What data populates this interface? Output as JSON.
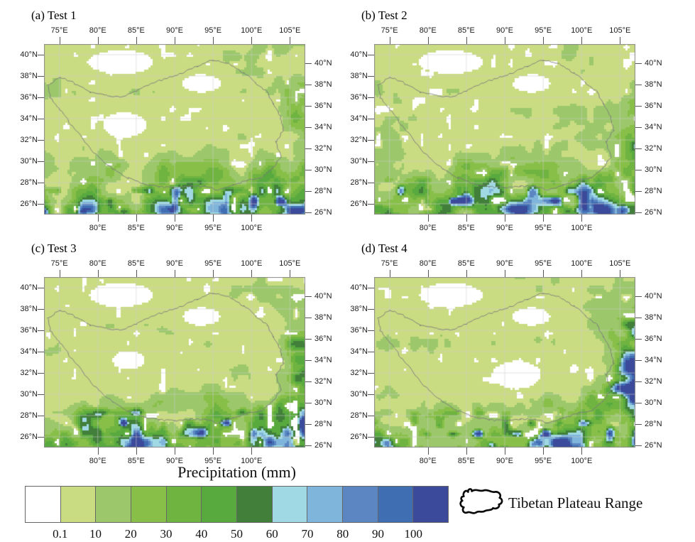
{
  "figure": {
    "panels": [
      {
        "key": "a",
        "title": "(a) Test 1"
      },
      {
        "key": "b",
        "title": "(b) Test 2"
      },
      {
        "key": "c",
        "title": "(c) Test 3"
      },
      {
        "key": "d",
        "title": "(d) Test 4"
      }
    ],
    "axes": {
      "top_ticks": [
        "75°E",
        "80°E",
        "85°E",
        "90°E",
        "95°E",
        "100°E",
        "105°E"
      ],
      "bottom_ticks": [
        "80°E",
        "85°E",
        "90°E",
        "95°E",
        "100°E"
      ],
      "left_ticks": [
        "40°N",
        "38°N",
        "36°N",
        "34°N",
        "32°N",
        "30°N",
        "28°N",
        "26°N"
      ],
      "right_ticks": [
        "40°N",
        "38°N",
        "36°N",
        "34°N",
        "32°N",
        "30°N",
        "28°N",
        "26°N"
      ]
    },
    "colorbar": {
      "title": "Precipitation (mm)",
      "tick_labels": [
        "0.1",
        "10",
        "20",
        "30",
        "40",
        "50",
        "60",
        "70",
        "80",
        "90",
        "100"
      ],
      "colors": [
        "#ffffff",
        "#c9dc82",
        "#9cc86b",
        "#88bf48",
        "#6fb341",
        "#58aa3f",
        "#417f3a",
        "#a0d9e4",
        "#7fb5da",
        "#5b86c2",
        "#3f6eb3",
        "#3c4a9b"
      ]
    },
    "legend": {
      "label": "Tibetan Plateau Range",
      "icon": "tibetan-plateau-outline-icon"
    }
  },
  "chart_data": {
    "type": "heatmap",
    "subtype": "filled_contour_precipitation_maps",
    "layout": "2x2_panel_grid",
    "panels": [
      "(a) Test 1",
      "(b) Test 2",
      "(c) Test 3",
      "(d) Test 4"
    ],
    "variable": "Precipitation (mm)",
    "levels": [
      0.1,
      10,
      20,
      30,
      40,
      50,
      60,
      70,
      80,
      90,
      100
    ],
    "palette": [
      "#ffffff",
      "#c9dc82",
      "#9cc86b",
      "#88bf48",
      "#6fb341",
      "#58aa3f",
      "#417f3a",
      "#a0d9e4",
      "#7fb5da",
      "#5b86c2",
      "#3f6eb3",
      "#3c4a9b"
    ],
    "lon_range_deg_e": [
      73,
      107
    ],
    "lat_range_deg_n": [
      25,
      41
    ],
    "lon_ticks_deg_e": [
      75,
      80,
      85,
      90,
      95,
      100,
      105
    ],
    "lat_ticks_deg_n": [
      40,
      38,
      36,
      34,
      32,
      30,
      28,
      26
    ],
    "overlay_outline": "Tibetan Plateau Range",
    "pattern_notes": "All four tests: mostly 0.1-10 mm (light green) over the plateau; <0.1 mm (white) over the Tarim and Qaidam basins and a central-western dry patch; 30-60 mm (dark green) band along ~26-30N; >60-100 mm (cyan-blue-navy) cells along the southern Himalayan fringe; Test 4 also shows >60 mm along the eastern edge (~105-107E, 27-36N)."
  }
}
